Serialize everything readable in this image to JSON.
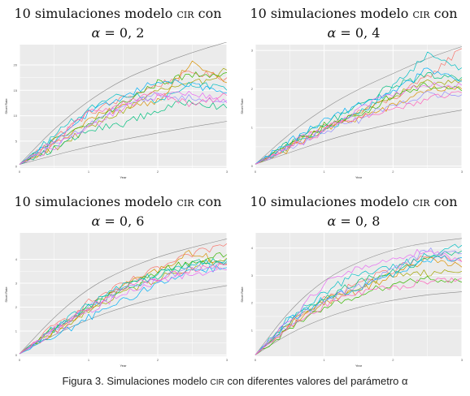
{
  "panels": [
    {
      "t1": "10 simulaciones modelo ",
      "sc": "CIR",
      "t2": " con",
      "alpha_sym": "α",
      "alpha_val": " = 0, 2"
    },
    {
      "t1": "10 simulaciones modelo ",
      "sc": "CIR",
      "t2": " con",
      "alpha_sym": "α",
      "alpha_val": " = 0, 4"
    },
    {
      "t1": "10 simulaciones modelo ",
      "sc": "CIR",
      "t2": " con",
      "alpha_sym": "α",
      "alpha_val": " = 0, 6"
    },
    {
      "t1": "10 simulaciones modelo ",
      "sc": "CIR",
      "t2": " con",
      "alpha_sym": "α",
      "alpha_val": " = 0, 8"
    }
  ],
  "caption": {
    "prefix": "Figura 3. Simulaciones modelo ",
    "sc": "CIR",
    "suffix": " con diferentes valores del parámetro α"
  },
  "colors": {
    "panel_bg": "#ebebeb",
    "grid": "#ffffff",
    "bound": "#8a8a8a"
  },
  "series_colors": [
    "#f8766d",
    "#d89000",
    "#a3a500",
    "#39b600",
    "#00bf7d",
    "#00bfc4",
    "#00b0f6",
    "#9590ff",
    "#e76bf3",
    "#ff62bc"
  ],
  "chart_data": [
    {
      "type": "line",
      "alpha": 0.2,
      "xlabel": "Year",
      "ylabel": "Short Rate",
      "x_ticks": [
        "0",
        "1",
        "2",
        "3"
      ],
      "y_ticks": [
        "0",
        "5",
        "10",
        "15",
        "20"
      ],
      "xlim": [
        0,
        3
      ],
      "ylim": [
        -0.3,
        24
      ],
      "grid": true,
      "legend": "none",
      "x": [
        0,
        0.5,
        1,
        1.5,
        2,
        2.5,
        3
      ],
      "bounds": [
        {
          "values": [
            0.4,
            7.5,
            13,
            17.2,
            20,
            22.5,
            24.5
          ]
        },
        {
          "values": [
            0.4,
            2.2,
            3.9,
            5.3,
            6.6,
            7.8,
            8.9
          ]
        }
      ],
      "series": [
        {
          "values": [
            0.4,
            5.5,
            10.5,
            13.4,
            16,
            18.5,
            17.5
          ]
        },
        {
          "values": [
            0.4,
            4.2,
            9.2,
            11.8,
            13,
            20.5,
            16.5
          ]
        },
        {
          "values": [
            0.4,
            3.5,
            7.5,
            11,
            15,
            16,
            19
          ]
        },
        {
          "values": [
            0.4,
            5,
            8.2,
            12.5,
            16.5,
            18,
            18.5
          ]
        },
        {
          "values": [
            0.4,
            3.5,
            7,
            8.5,
            11,
            13,
            11.5
          ]
        },
        {
          "values": [
            0.4,
            6,
            11.5,
            14.5,
            13,
            16.5,
            15
          ]
        },
        {
          "values": [
            0.4,
            5.2,
            10.5,
            13.5,
            17,
            16,
            14.5
          ]
        },
        {
          "values": [
            0.4,
            4.5,
            8,
            12.5,
            14,
            13.5,
            13
          ]
        },
        {
          "values": [
            0.4,
            3.8,
            7.5,
            11.5,
            14,
            14.5,
            12.5
          ]
        },
        {
          "values": [
            0.4,
            5,
            10.5,
            12.5,
            14.5,
            12,
            14
          ]
        }
      ]
    },
    {
      "type": "line",
      "alpha": 0.4,
      "xlabel": "Year",
      "ylabel": "Short Rate",
      "x_ticks": [
        "0",
        "1",
        "2",
        "3"
      ],
      "y_ticks": [
        "0",
        "1",
        "2",
        "3"
      ],
      "xlim": [
        0,
        3
      ],
      "ylim": [
        -0.05,
        3.15
      ],
      "grid": true,
      "legend": "none",
      "x": [
        0,
        0.5,
        1,
        1.5,
        2,
        2.5,
        3
      ],
      "bounds": [
        {
          "values": [
            0.05,
            0.85,
            1.5,
            2.0,
            2.4,
            2.8,
            3.1
          ]
        },
        {
          "values": [
            0.05,
            0.35,
            0.65,
            0.9,
            1.1,
            1.3,
            1.45
          ]
        }
      ],
      "series": [
        {
          "values": [
            0.05,
            0.55,
            1.0,
            1.4,
            1.75,
            2.3,
            3.05
          ]
        },
        {
          "values": [
            0.05,
            0.45,
            0.95,
            1.25,
            1.55,
            2.0,
            2.0
          ]
        },
        {
          "values": [
            0.05,
            0.5,
            1.0,
            1.4,
            1.8,
            2.15,
            2.25
          ]
        },
        {
          "values": [
            0.05,
            0.55,
            1.05,
            1.3,
            1.85,
            2.1,
            1.95
          ]
        },
        {
          "values": [
            0.05,
            0.6,
            1.1,
            1.55,
            2.1,
            2.35,
            2.3
          ]
        },
        {
          "values": [
            0.05,
            0.5,
            0.95,
            1.35,
            2.05,
            2.9,
            2.55
          ]
        },
        {
          "values": [
            0.05,
            0.65,
            1.15,
            1.6,
            1.9,
            2.5,
            2.2
          ]
        },
        {
          "values": [
            0.05,
            0.45,
            0.9,
            1.2,
            1.6,
            1.85,
            1.85
          ]
        },
        {
          "values": [
            0.05,
            0.55,
            1.0,
            1.45,
            1.9,
            2.1,
            2.1
          ]
        },
        {
          "values": [
            0.05,
            0.5,
            0.9,
            1.3,
            1.45,
            1.75,
            1.9
          ]
        }
      ]
    },
    {
      "type": "line",
      "alpha": 0.6,
      "xlabel": "Year",
      "ylabel": "Short Rate",
      "x_ticks": [
        "0",
        "1",
        "2",
        "3"
      ],
      "y_ticks": [
        "0",
        "1",
        "2",
        "3",
        "4"
      ],
      "xlim": [
        0,
        3
      ],
      "ylim": [
        -0.05,
        5.1
      ],
      "grid": true,
      "legend": "none",
      "x": [
        0,
        0.5,
        1,
        1.5,
        2,
        2.5,
        3
      ],
      "bounds": [
        {
          "values": [
            0.05,
            1.6,
            2.8,
            3.55,
            4.1,
            4.5,
            4.85
          ]
        },
        {
          "values": [
            0.05,
            0.85,
            1.5,
            2.0,
            2.4,
            2.65,
            2.9
          ]
        }
      ],
      "series": [
        {
          "values": [
            0.05,
            1.2,
            2.2,
            2.95,
            3.6,
            4.2,
            4.65
          ]
        },
        {
          "values": [
            0.05,
            1.0,
            1.95,
            2.9,
            3.55,
            4.3,
            3.8
          ]
        },
        {
          "values": [
            0.05,
            0.95,
            1.85,
            2.6,
            3.2,
            3.7,
            4.05
          ]
        },
        {
          "values": [
            0.05,
            1.1,
            2.0,
            2.8,
            3.5,
            3.9,
            4.2
          ]
        },
        {
          "values": [
            0.05,
            1.05,
            2.05,
            2.75,
            3.3,
            3.85,
            3.9
          ]
        },
        {
          "values": [
            0.05,
            1.15,
            2.1,
            2.9,
            3.4,
            3.75,
            4.0
          ]
        },
        {
          "values": [
            0.05,
            0.75,
            1.55,
            2.25,
            3.0,
            3.55,
            3.65
          ]
        },
        {
          "values": [
            0.05,
            1.05,
            1.95,
            2.7,
            3.25,
            3.6,
            3.85
          ]
        },
        {
          "values": [
            0.05,
            0.95,
            1.8,
            2.6,
            3.1,
            3.4,
            3.55
          ]
        },
        {
          "values": [
            0.05,
            1.1,
            2.0,
            2.85,
            3.2,
            3.6,
            3.75
          ]
        }
      ]
    },
    {
      "type": "line",
      "alpha": 0.8,
      "xlabel": "Year",
      "ylabel": "Short Rate",
      "x_ticks": [
        "0",
        "1",
        "2",
        "3"
      ],
      "y_ticks": [
        "1",
        "2",
        "3",
        "4"
      ],
      "xlim": [
        0,
        3
      ],
      "ylim": [
        0.05,
        4.55
      ],
      "grid": true,
      "legend": "none",
      "x": [
        0,
        0.5,
        1,
        1.5,
        2,
        2.5,
        3
      ],
      "bounds": [
        {
          "values": [
            0.1,
            1.75,
            2.85,
            3.5,
            3.95,
            4.2,
            4.35
          ]
        },
        {
          "values": [
            0.1,
            0.9,
            1.45,
            1.85,
            2.1,
            2.3,
            2.4
          ]
        }
      ],
      "series": [
        {
          "values": [
            0.1,
            1.3,
            2.1,
            2.75,
            3.2,
            3.7,
            3.5
          ]
        },
        {
          "values": [
            0.1,
            1.15,
            2.0,
            2.45,
            3.0,
            3.6,
            3.3
          ]
        },
        {
          "values": [
            0.1,
            1.2,
            2.05,
            2.6,
            3.05,
            3.1,
            3.15
          ]
        },
        {
          "values": [
            0.1,
            1.0,
            1.8,
            2.3,
            2.7,
            2.9,
            2.75
          ]
        },
        {
          "values": [
            0.1,
            1.3,
            2.15,
            2.8,
            3.1,
            3.6,
            3.9
          ]
        },
        {
          "values": [
            0.1,
            1.45,
            2.4,
            3.05,
            3.3,
            3.75,
            4.1
          ]
        },
        {
          "values": [
            0.1,
            1.35,
            2.15,
            2.55,
            3.0,
            3.55,
            3.65
          ]
        },
        {
          "values": [
            0.1,
            1.25,
            2.05,
            2.6,
            3.2,
            3.9,
            3.8
          ]
        },
        {
          "values": [
            0.1,
            1.4,
            2.7,
            3.25,
            3.6,
            3.95,
            3.5
          ]
        },
        {
          "values": [
            0.1,
            1.15,
            1.9,
            2.35,
            2.55,
            2.8,
            2.9
          ]
        }
      ]
    }
  ]
}
